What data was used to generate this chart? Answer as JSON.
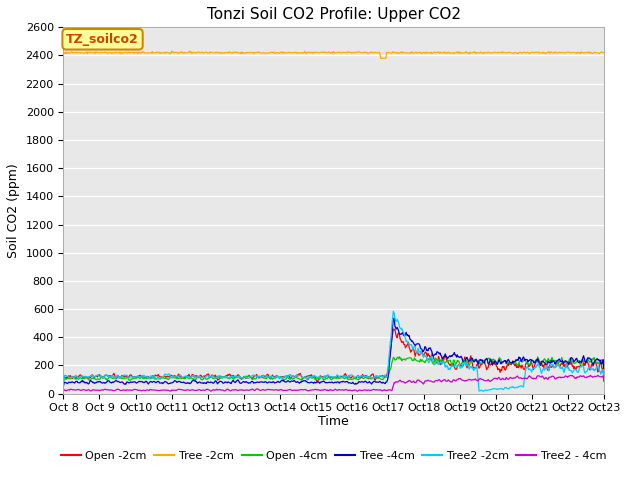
{
  "title": "Tonzi Soil CO2 Profile: Upper CO2",
  "ylabel": "Soil CO2 (ppm)",
  "xlabel": "Time",
  "ylim": [
    0,
    2600
  ],
  "yticks": [
    0,
    200,
    400,
    600,
    800,
    1000,
    1200,
    1400,
    1600,
    1800,
    2000,
    2200,
    2400,
    2600
  ],
  "xtick_labels": [
    "Oct 8",
    "Oct 9",
    "Oct 10",
    "Oct 11",
    "Oct 12",
    "Oct 13",
    "Oct 14",
    "Oct 15",
    "Oct 16",
    "Oct 17",
    "Oct 18",
    "Oct 19",
    "Oct 20",
    "Oct 21",
    "Oct 22",
    "Oct 23"
  ],
  "background_color": "#e8e8e8",
  "legend_box_color": "#ffff99",
  "legend_box_label": "TZ_soilco2",
  "series": [
    {
      "label": "Open -2cm",
      "color": "#ff0000"
    },
    {
      "label": "Tree -2cm",
      "color": "#ffaa00"
    },
    {
      "label": "Open -4cm",
      "color": "#00cc00"
    },
    {
      "label": "Tree -4cm",
      "color": "#0000cc"
    },
    {
      "label": "Tree2 -2cm",
      "color": "#00ccff"
    },
    {
      "label": "Tree2 - 4cm",
      "color": "#cc00cc"
    }
  ],
  "title_fontsize": 11,
  "axis_label_fontsize": 9,
  "tick_fontsize": 8,
  "legend_fontsize": 8
}
